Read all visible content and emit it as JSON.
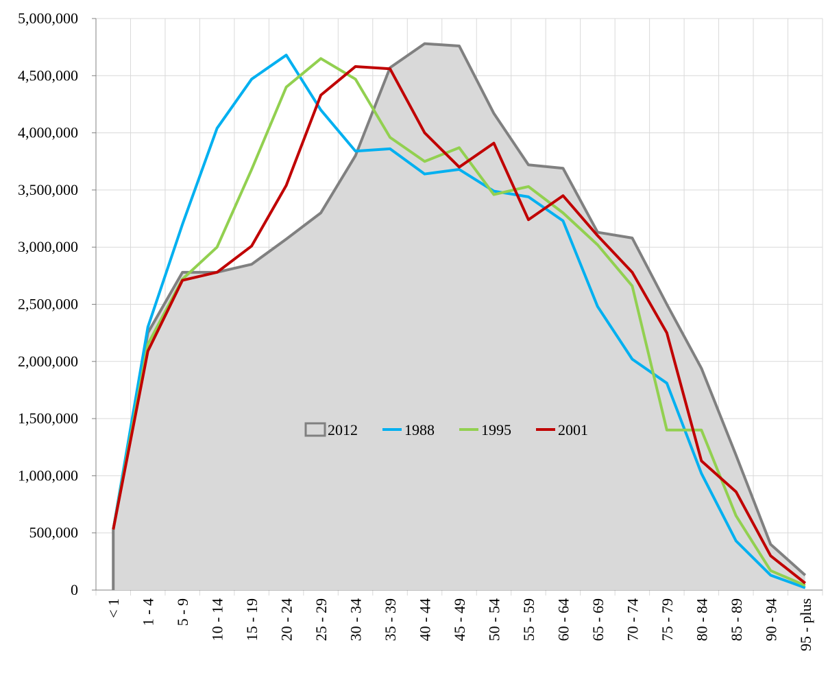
{
  "chart_data": {
    "type": "line",
    "categories": [
      "< 1",
      "1 - 4",
      "5 - 9",
      "10 - 14",
      "15 - 19",
      "20 - 24",
      "25 - 29",
      "30 - 34",
      "35 - 39",
      "40 - 44",
      "45 - 49",
      "50 - 54",
      "55 - 59",
      "60 - 64",
      "65 - 69",
      "70 - 74",
      "75 - 79",
      "80 - 84",
      "85 - 89",
      "90 - 94",
      "95 - plus"
    ],
    "series": [
      {
        "name": "2012",
        "color": "#808080",
        "fill": "#d9d9d9",
        "kind": "area",
        "values": [
          530000,
          2250000,
          2780000,
          2780000,
          2850000,
          3070000,
          3300000,
          3800000,
          4570000,
          4780000,
          4760000,
          4170000,
          3720000,
          3690000,
          3130000,
          3080000,
          2500000,
          1940000,
          1180000,
          400000,
          130000
        ]
      },
      {
        "name": "1988",
        "color": "#00b0f0",
        "kind": "line",
        "values": [
          530000,
          2300000,
          3200000,
          4040000,
          4470000,
          4680000,
          4200000,
          3840000,
          3860000,
          3640000,
          3680000,
          3490000,
          3440000,
          3230000,
          2480000,
          2020000,
          1810000,
          1020000,
          430000,
          130000,
          20000
        ]
      },
      {
        "name": "1995",
        "color": "#92d050",
        "kind": "line",
        "values": [
          530000,
          2150000,
          2720000,
          3000000,
          3680000,
          4400000,
          4650000,
          4470000,
          3960000,
          3750000,
          3870000,
          3460000,
          3530000,
          3300000,
          3020000,
          2660000,
          1400000,
          1400000,
          650000,
          170000,
          40000
        ]
      },
      {
        "name": "2001",
        "color": "#c00000",
        "kind": "line",
        "values": [
          530000,
          2090000,
          2710000,
          2780000,
          3010000,
          3540000,
          4330000,
          4580000,
          4560000,
          4000000,
          3700000,
          3910000,
          3240000,
          3450000,
          3100000,
          2780000,
          2250000,
          1130000,
          860000,
          300000,
          60000
        ]
      }
    ],
    "ylim": [
      0,
      5000000
    ],
    "yticks": [
      0,
      {
        "value": 500000,
        "label": "500,000"
      },
      {
        "value": 1000000,
        "label": "1,000,000"
      },
      {
        "value": 1500000,
        "label": "1,500,000"
      },
      {
        "value": 2000000,
        "label": "2,000,000"
      },
      {
        "value": 2500000,
        "label": "2,500,000"
      },
      {
        "value": 3000000,
        "label": "3,000,000"
      },
      {
        "value": 3500000,
        "label": "3,500,000"
      },
      {
        "value": 4000000,
        "label": "4,000,000"
      },
      {
        "value": 4500000,
        "label": "4,500,000"
      },
      {
        "value": 5000000,
        "label": "5,000,000"
      }
    ],
    "grid": true,
    "legend": "center"
  }
}
